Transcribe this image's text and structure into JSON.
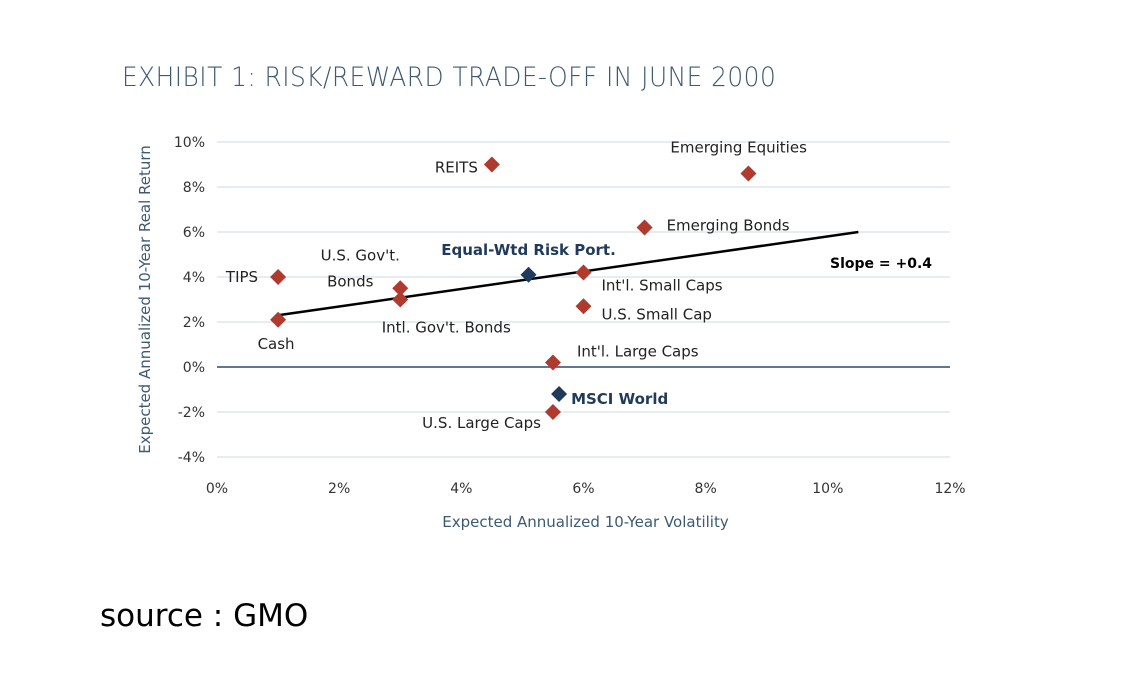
{
  "chart_data": {
    "type": "scatter",
    "title": "EXHIBIT 1: RISK/REWARD TRADE-OFF IN JUNE 2000",
    "xlabel": "Expected Annualized 10-Year Volatility",
    "ylabel": "Expected Annualized 10-Year Real Return",
    "xlim": [
      0,
      12
    ],
    "ylim": [
      -4,
      10
    ],
    "x_ticks": [
      0,
      2,
      4,
      6,
      8,
      10,
      12
    ],
    "y_ticks": [
      -4,
      -2,
      0,
      2,
      4,
      6,
      8,
      10
    ],
    "x_tick_labels": [
      "0%",
      "2%",
      "4%",
      "6%",
      "8%",
      "10%",
      "12%"
    ],
    "y_tick_labels": [
      "-4%",
      "-2%",
      "0%",
      "2%",
      "4%",
      "6%",
      "8%",
      "10%"
    ],
    "grid": "horizontal",
    "colors": {
      "asset": "#b03a2e",
      "highlight": "#1f3a5a",
      "grid": "#dfe6ee",
      "zero_line": "#2c4a66"
    },
    "points": [
      {
        "label": "TIPS",
        "x": 1.0,
        "y": 4.0,
        "highlight": false
      },
      {
        "label": "Cash",
        "x": 1.0,
        "y": 2.1,
        "highlight": false
      },
      {
        "label": "U.S. Gov't.",
        "label2": "Bonds",
        "x": 3.0,
        "y": 3.5,
        "highlight": false
      },
      {
        "label": "Intl. Gov't. Bonds",
        "x": 3.0,
        "y": 3.0,
        "highlight": false
      },
      {
        "label": "REITS",
        "x": 4.5,
        "y": 9.0,
        "highlight": false
      },
      {
        "label": "Equal-Wtd Risk Port.",
        "x": 5.1,
        "y": 4.1,
        "highlight": true
      },
      {
        "label": "Int'l. Small Caps",
        "x": 6.0,
        "y": 4.2,
        "highlight": false
      },
      {
        "label": "U.S. Small Cap",
        "x": 6.0,
        "y": 2.7,
        "highlight": false
      },
      {
        "label": "Int'l. Large Caps",
        "x": 5.5,
        "y": 0.2,
        "highlight": false
      },
      {
        "label": "MSCI World",
        "x": 5.6,
        "y": -1.2,
        "highlight": true
      },
      {
        "label": "U.S. Large Caps",
        "x": 5.5,
        "y": -2.0,
        "highlight": false
      },
      {
        "label": "Emerging Bonds",
        "x": 7.0,
        "y": 6.2,
        "highlight": false
      },
      {
        "label": "Emerging Equities",
        "x": 8.7,
        "y": 8.6,
        "highlight": false
      }
    ],
    "trendline": {
      "x": [
        1.0,
        10.5
      ],
      "y": [
        2.3,
        6.0
      ],
      "label": "Slope = +0.4"
    }
  },
  "source": "source : GMO"
}
